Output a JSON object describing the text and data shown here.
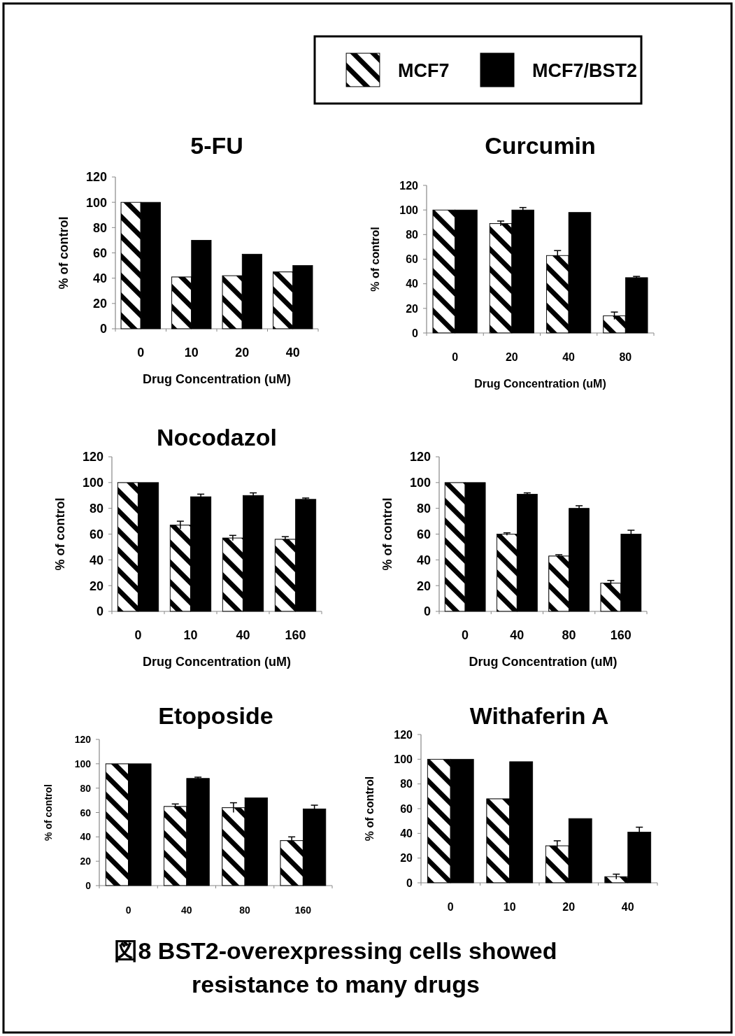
{
  "chart_data": [
    {
      "type": "bar",
      "title": "5-FU",
      "xlabel": "Drug Concentration (uM)",
      "ylabel": "% of control",
      "categories": [
        "0",
        "10",
        "20",
        "40"
      ],
      "legend": "top",
      "series": [
        {
          "name": "MCF7",
          "color": "#000000",
          "values": [
            100,
            41,
            42,
            45
          ]
        },
        {
          "name": "MCF7/BST2",
          "color": "#000000",
          "values": [
            100,
            70,
            59,
            50
          ]
        }
      ],
      "ylim": [
        0,
        120
      ],
      "yticks": [
        0,
        20,
        40,
        60,
        80,
        100,
        120
      ]
    },
    {
      "type": "bar",
      "title": "Curcumin",
      "xlabel": "Drug Concentration (uM)",
      "ylabel": "% of control",
      "categories": [
        "0",
        "20",
        "40",
        "80"
      ],
      "series": [
        {
          "color": "#000000",
          "values": [
            100,
            89,
            63,
            14
          ],
          "errors": [
            null,
            2,
            4,
            3
          ]
        },
        {
          "color": "#000000",
          "values": [
            100,
            100,
            98,
            45
          ],
          "errors": [
            null,
            2,
            null,
            1
          ]
        }
      ],
      "ylim": [
        0,
        120
      ],
      "yticks": [
        0,
        20,
        40,
        60,
        80,
        100,
        120
      ]
    },
    {
      "type": "bar",
      "title": "Nocodazol",
      "xlabel": "Drug Concentration (uM)",
      "ylabel": "% of control",
      "categories": [
        "0",
        "10",
        "40",
        "160"
      ],
      "series": [
        {
          "color": "#000000",
          "values": [
            100,
            67,
            57,
            56
          ],
          "errors": [
            null,
            3,
            2,
            2
          ]
        },
        {
          "color": "#000000",
          "values": [
            100,
            89,
            90,
            87
          ],
          "errors": [
            null,
            2,
            2,
            1
          ]
        }
      ],
      "ylim": [
        0,
        120
      ],
      "yticks": [
        0,
        20,
        40,
        60,
        80,
        100,
        120
      ]
    },
    {
      "type": "bar",
      "xlabel": "Drug Concentration (uM)",
      "ylabel": "% of control",
      "categories": [
        "0",
        "40",
        "80",
        "160"
      ],
      "series": [
        {
          "color": "#000000",
          "values": [
            100,
            60,
            43,
            22
          ],
          "errors": [
            null,
            1,
            1,
            2
          ]
        },
        {
          "color": "#000000",
          "values": [
            100,
            91,
            80,
            60
          ],
          "errors": [
            null,
            1,
            2,
            3
          ]
        }
      ],
      "ylim": [
        0,
        120
      ],
      "yticks": [
        0,
        20,
        40,
        60,
        80,
        100,
        120
      ]
    },
    {
      "type": "bar",
      "title": "Etoposide",
      "ylabel": "% of control",
      "categories": [
        "0",
        "40",
        "80",
        "160"
      ],
      "series": [
        {
          "color": "#000000",
          "values": [
            100,
            65,
            64,
            37
          ],
          "errors": [
            null,
            2,
            4,
            3
          ]
        },
        {
          "color": "#000000",
          "values": [
            100,
            88,
            72,
            63
          ],
          "errors": [
            null,
            1,
            null,
            3
          ]
        }
      ],
      "ylim": [
        0,
        120
      ],
      "yticks": [
        0,
        20,
        40,
        60,
        80,
        100,
        120
      ]
    },
    {
      "type": "bar",
      "title": "Withaferin A",
      "ylabel": "% of control",
      "categories": [
        "0",
        "10",
        "20",
        "40"
      ],
      "series": [
        {
          "color": "#000000",
          "values": [
            100,
            68,
            30,
            5
          ],
          "errors": [
            null,
            null,
            4,
            2
          ]
        },
        {
          "color": "#000000",
          "values": [
            100,
            98,
            52,
            41
          ],
          "errors": [
            null,
            null,
            null,
            4
          ]
        }
      ],
      "ylim": [
        0,
        120
      ],
      "yticks": [
        0,
        20,
        40,
        60,
        80,
        100,
        120
      ],
      "annotations": [
        "図8 BST2-overexpressing cells showed resistance to many drugs"
      ]
    }
  ]
}
